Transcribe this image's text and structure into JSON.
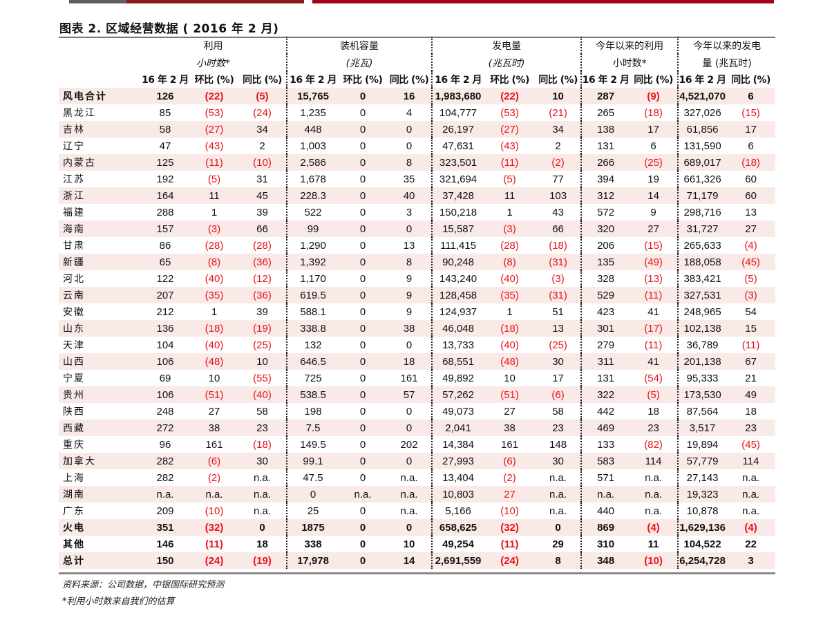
{
  "title": "图表 2. 区域经营数据 ( 2016 年 2 月)",
  "colors": {
    "gray_bar": "#5f5f5f",
    "dark_red_bar": "#8b1a1f",
    "red_bar": "#a8001c",
    "negative": "#e8141b",
    "alt_row": "#f9e9e7"
  },
  "groups": [
    {
      "line1": "利用",
      "line2": "小时数*"
    },
    {
      "line1": "装机容量",
      "line2": "(兆瓦)"
    },
    {
      "line1": "发电量",
      "line2": "(兆瓦时)"
    },
    {
      "line1": "今年以来的利用",
      "line2": "小时数*"
    },
    {
      "line1": "今年以来的发电",
      "line2": "量 (兆瓦时)"
    }
  ],
  "subheaders": [
    "16 年 2 月",
    "环比 (%)",
    "同比 (%)",
    "16 年 2 月",
    "环比 (%)",
    "同比 (%)",
    "16 年 2 月",
    "环比 (%)",
    "同比 (%)",
    "16 年 2 月",
    "同比 (%)",
    "16 年 2 月",
    "同比 (%)"
  ],
  "rows": [
    {
      "label": "风电合计",
      "bold": true,
      "values": [
        "126",
        "(22)",
        "(5)",
        "15,765",
        "0",
        "16",
        "1,983,680",
        "(22)",
        "10",
        "287",
        "(9)",
        "4,521,070",
        "6"
      ]
    },
    {
      "label": "黑龙江",
      "values": [
        "85",
        "(53)",
        "(24)",
        "1,235",
        "0",
        "4",
        "104,777",
        "(53)",
        "(21)",
        "265",
        "(18)",
        "327,026",
        "(15)"
      ]
    },
    {
      "label": "吉林",
      "values": [
        "58",
        "(27)",
        "34",
        "448",
        "0",
        "0",
        "26,197",
        "(27)",
        "34",
        "138",
        "17",
        "61,856",
        "17"
      ]
    },
    {
      "label": "辽宁",
      "values": [
        "47",
        "(43)",
        "2",
        "1,003",
        "0",
        "0",
        "47,631",
        "(43)",
        "2",
        "131",
        "6",
        "131,590",
        "6"
      ]
    },
    {
      "label": "内蒙古",
      "values": [
        "125",
        "(11)",
        "(10)",
        "2,586",
        "0",
        "8",
        "323,501",
        "(11)",
        "(2)",
        "266",
        "(25)",
        "689,017",
        "(18)"
      ]
    },
    {
      "label": "江苏",
      "values": [
        "192",
        "(5)",
        "31",
        "1,678",
        "0",
        "35",
        "321,694",
        "(5)",
        "77",
        "394",
        "19",
        "661,326",
        "60"
      ]
    },
    {
      "label": "浙江",
      "values": [
        "164",
        "11",
        "45",
        "228.3",
        "0",
        "40",
        "37,428",
        "11",
        "103",
        "312",
        "14",
        "71,179",
        "60"
      ]
    },
    {
      "label": "福建",
      "values": [
        "288",
        "1",
        "39",
        "522",
        "0",
        "3",
        "150,218",
        "1",
        "43",
        "572",
        "9",
        "298,716",
        "13"
      ]
    },
    {
      "label": "海南",
      "values": [
        "157",
        "(3)",
        "66",
        "99",
        "0",
        "0",
        "15,587",
        "(3)",
        "66",
        "320",
        "27",
        "31,727",
        "27"
      ]
    },
    {
      "label": "甘肃",
      "values": [
        "86",
        "(28)",
        "(28)",
        "1,290",
        "0",
        "13",
        "111,415",
        "(28)",
        "(18)",
        "206",
        "(15)",
        "265,633",
        "(4)"
      ]
    },
    {
      "label": "新疆",
      "values": [
        "65",
        "(8)",
        "(36)",
        "1,392",
        "0",
        "8",
        "90,248",
        "(8)",
        "(31)",
        "135",
        "(49)",
        "188,058",
        "(45)"
      ]
    },
    {
      "label": "河北",
      "values": [
        "122",
        "(40)",
        "(12)",
        "1,170",
        "0",
        "9",
        "143,240",
        "(40)",
        "(3)",
        "328",
        "(13)",
        "383,421",
        "(5)"
      ]
    },
    {
      "label": "云南",
      "values": [
        "207",
        "(35)",
        "(36)",
        "619.5",
        "0",
        "9",
        "128,458",
        "(35)",
        "(31)",
        "529",
        "(11)",
        "327,531",
        "(3)"
      ]
    },
    {
      "label": "安徽",
      "values": [
        "212",
        "1",
        "39",
        "588.1",
        "0",
        "9",
        "124,937",
        "1",
        "51",
        "423",
        "41",
        "248,965",
        "54"
      ]
    },
    {
      "label": "山东",
      "values": [
        "136",
        "(18)",
        "(19)",
        "338.8",
        "0",
        "38",
        "46,048",
        "(18)",
        "13",
        "301",
        "(17)",
        "102,138",
        "15"
      ]
    },
    {
      "label": "天津",
      "values": [
        "104",
        "(40)",
        "(25)",
        "132",
        "0",
        "0",
        "13,733",
        "(40)",
        "(25)",
        "279",
        "(11)",
        "36,789",
        "(11)"
      ]
    },
    {
      "label": "山西",
      "values": [
        "106",
        "(48)",
        "10",
        "646.5",
        "0",
        "18",
        "68,551",
        "(48)",
        "30",
        "311",
        "41",
        "201,138",
        "67"
      ]
    },
    {
      "label": "宁夏",
      "values": [
        "69",
        "10",
        "(55)",
        "725",
        "0",
        "161",
        "49,892",
        "10",
        "17",
        "131",
        "(54)",
        "95,333",
        "21"
      ]
    },
    {
      "label": "贵州",
      "values": [
        "106",
        "(51)",
        "(40)",
        "538.5",
        "0",
        "57",
        "57,262",
        "(51)",
        "(6)",
        "322",
        "(5)",
        "173,530",
        "49"
      ]
    },
    {
      "label": "陕西",
      "values": [
        "248",
        "27",
        "58",
        "198",
        "0",
        "0",
        "49,073",
        "27",
        "58",
        "442",
        "18",
        "87,564",
        "18"
      ]
    },
    {
      "label": "西藏",
      "values": [
        "272",
        "38",
        "23",
        "7.5",
        "0",
        "0",
        "2,041",
        "38",
        "23",
        "469",
        "23",
        "3,517",
        "23"
      ]
    },
    {
      "label": "重庆",
      "values": [
        "96",
        "161",
        "(18)",
        "149.5",
        "0",
        "202",
        "14,384",
        "161",
        "148",
        "133",
        "(82)",
        "19,894",
        "(45)"
      ]
    },
    {
      "label": "加拿大",
      "values": [
        "282",
        "(6)",
        "30",
        "99.1",
        "0",
        "0",
        "27,993",
        "(6)",
        "30",
        "583",
        "114",
        "57,779",
        "114"
      ]
    },
    {
      "label": "上海",
      "values": [
        "282",
        "(2)",
        "n.a.",
        "47.5",
        "0",
        "n.a.",
        "13,404",
        "(2)",
        "n.a.",
        "571",
        "n.a.",
        "27,143",
        "n.a."
      ]
    },
    {
      "label": "湖南",
      "values": [
        "n.a.",
        "n.a.",
        "n.a.",
        "0",
        "n.a.",
        "n.a.",
        "10,803",
        "27",
        "n.a.",
        "n.a.",
        "n.a.",
        "19,323",
        "n.a."
      ],
      "red_cols": [
        7
      ]
    },
    {
      "label": "广东",
      "values": [
        "209",
        "(10)",
        "n.a.",
        "25",
        "0",
        "n.a.",
        "5,166",
        "(10)",
        "n.a.",
        "440",
        "n.a.",
        "10,878",
        "n.a."
      ]
    },
    {
      "label": "火电",
      "bold": true,
      "values": [
        "351",
        "(32)",
        "0",
        "1875",
        "0",
        "0",
        "658,625",
        "(32)",
        "0",
        "869",
        "(4)",
        "1,629,136",
        "(4)"
      ]
    },
    {
      "label": "其他",
      "bold": true,
      "values": [
        "146",
        "(11)",
        "18",
        "338",
        "0",
        "10",
        "49,254",
        "(11)",
        "29",
        "310",
        "11",
        "104,522",
        "22"
      ]
    },
    {
      "label": "总计",
      "bold": true,
      "values": [
        "150",
        "(24)",
        "(19)",
        "17,978",
        "0",
        "14",
        "2,691,559",
        "(24)",
        "8",
        "348",
        "(10)",
        "6,254,728",
        "3"
      ]
    }
  ],
  "notes": [
    "资料来源：公司数据，中银国际研究预测",
    "*利用小时数来自我们的估算"
  ]
}
